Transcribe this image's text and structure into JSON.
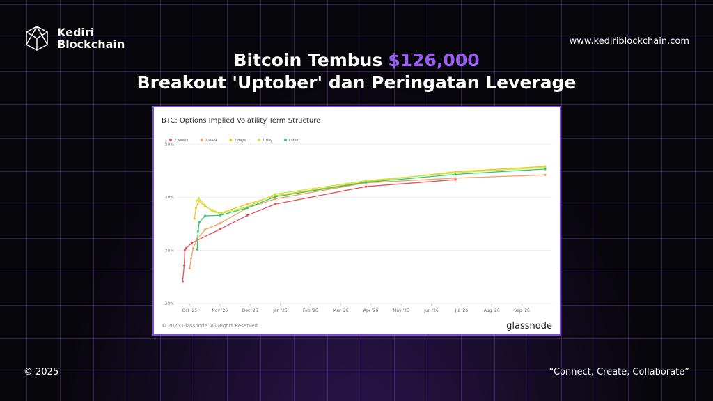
{
  "brand": {
    "line1": "Kediri",
    "line2": "Blockchain"
  },
  "website": "www.kediriblockchain.com",
  "headline": {
    "prefix": "Bitcoin Tembus",
    "highlight": "$126,000",
    "line2": "Breakout 'Uptober' dan Peringatan Leverage"
  },
  "chart_data": {
    "type": "line",
    "title": "BTC: Options Implied Volatility Term Structure",
    "source": "© 2025 Glassnode. All Rights Reserved.",
    "logo": "glassnode",
    "xlim": [
      -0.4,
      12
    ],
    "xticks": [
      {
        "value": 0,
        "label": "Oct '25"
      },
      {
        "value": 1,
        "label": "Nov '25"
      },
      {
        "value": 2,
        "label": "Dec '25"
      },
      {
        "value": 3,
        "label": "Jan '26"
      },
      {
        "value": 4,
        "label": "Feb '26"
      },
      {
        "value": 5,
        "label": "Mar '26"
      },
      {
        "value": 6,
        "label": "Apr '26"
      },
      {
        "value": 7,
        "label": "May '26"
      },
      {
        "value": 8,
        "label": "Jun '26"
      },
      {
        "value": 9,
        "label": "Jul '26"
      },
      {
        "value": 10,
        "label": "Aug '26"
      },
      {
        "value": 11,
        "label": "Sep '26"
      }
    ],
    "ylim": [
      20,
      50
    ],
    "yticks": [
      {
        "value": 20,
        "label": "20%"
      },
      {
        "value": 30,
        "label": "30%"
      },
      {
        "value": 40,
        "label": "40%"
      },
      {
        "value": 50,
        "label": "50%"
      }
    ],
    "grid": true,
    "series": [
      {
        "name": "2 weeks",
        "color": "#e8505b",
        "x": [
          -0.23,
          -0.18,
          -0.16,
          -0.12,
          0.07,
          0.25,
          1.01,
          1.91,
          2.83,
          5.83,
          8.8
        ],
        "values": [
          24.2,
          27.2,
          30.1,
          30.4,
          31.4,
          31.9,
          34.0,
          36.6,
          38.7,
          42.0,
          43.3
        ]
      },
      {
        "name": "1 week",
        "color": "#f4a261",
        "x": [
          0,
          0.05,
          0.12,
          0.25,
          0.51,
          1.01,
          1.91,
          2.83,
          5.83,
          8.8,
          11.77
        ],
        "values": [
          26.6,
          28.5,
          30.4,
          32.2,
          33.9,
          35.1,
          38.0,
          39.7,
          42.7,
          43.6,
          44.2
        ]
      },
      {
        "name": "2 days",
        "color": "#f5c518",
        "x": [
          0.16,
          0.21,
          0.3,
          0.51,
          0.74,
          1.01,
          1.91,
          2.83,
          5.83,
          8.8,
          11.77
        ],
        "values": [
          36.0,
          38.0,
          39.3,
          38.3,
          37.6,
          37.0,
          38.7,
          40.3,
          42.9,
          44.8,
          45.8
        ]
      },
      {
        "name": "1 day",
        "color": "#c6e84a",
        "x": [
          0.23,
          0.3,
          0.51,
          0.74,
          1.01,
          1.91,
          2.83,
          5.83,
          8.8,
          11.77
        ],
        "values": [
          39.3,
          39.8,
          38.5,
          37.4,
          36.9,
          38.2,
          40.6,
          43.1,
          44.6,
          45.6
        ]
      },
      {
        "name": "Latest",
        "color": "#2ecc71",
        "x": [
          0.25,
          0.28,
          0.32,
          0.51,
          1.01,
          1.91,
          2.83,
          5.83,
          8.8,
          11.77
        ],
        "values": [
          30.2,
          33.6,
          35.3,
          36.5,
          36.6,
          38.0,
          40.1,
          42.8,
          44.3,
          45.3
        ]
      }
    ]
  },
  "footer": {
    "copyright": "© 2025",
    "tagline": "“Connect, Create, Collaborate”"
  }
}
